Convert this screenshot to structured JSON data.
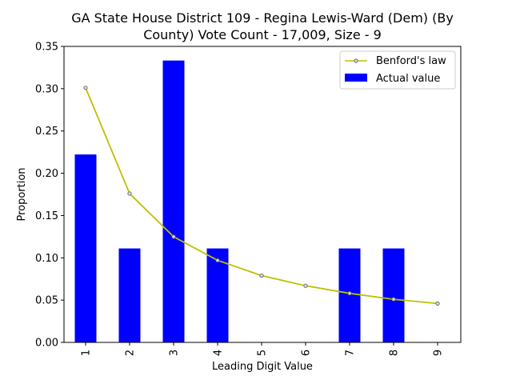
{
  "chart_data": {
    "type": "bar",
    "title_line1": "GA State House District 109 - Regina Lewis-Ward (Dem) (By",
    "title_line2": "County) Vote Count - 17,009, Size - 9",
    "xlabel": "Leading Digit Value",
    "ylabel": "Proportion",
    "categories": [
      "1",
      "2",
      "3",
      "4",
      "5",
      "6",
      "7",
      "8",
      "9"
    ],
    "ylim": [
      0,
      0.35
    ],
    "yticks": [
      "0.00",
      "0.05",
      "0.10",
      "0.15",
      "0.20",
      "0.25",
      "0.30",
      "0.35"
    ],
    "grid": false,
    "legend_position": "top-right",
    "series": [
      {
        "name": "Benford's law",
        "type": "line",
        "color": "#bfbf00",
        "values": [
          0.301,
          0.176,
          0.125,
          0.097,
          0.079,
          0.067,
          0.058,
          0.051,
          0.046
        ]
      },
      {
        "name": "Actual value",
        "type": "bar",
        "color": "#0000ff",
        "values": [
          0.2222,
          0.1111,
          0.3333,
          0.1111,
          0.0,
          0.0,
          0.1111,
          0.1111,
          0.0
        ]
      }
    ]
  }
}
